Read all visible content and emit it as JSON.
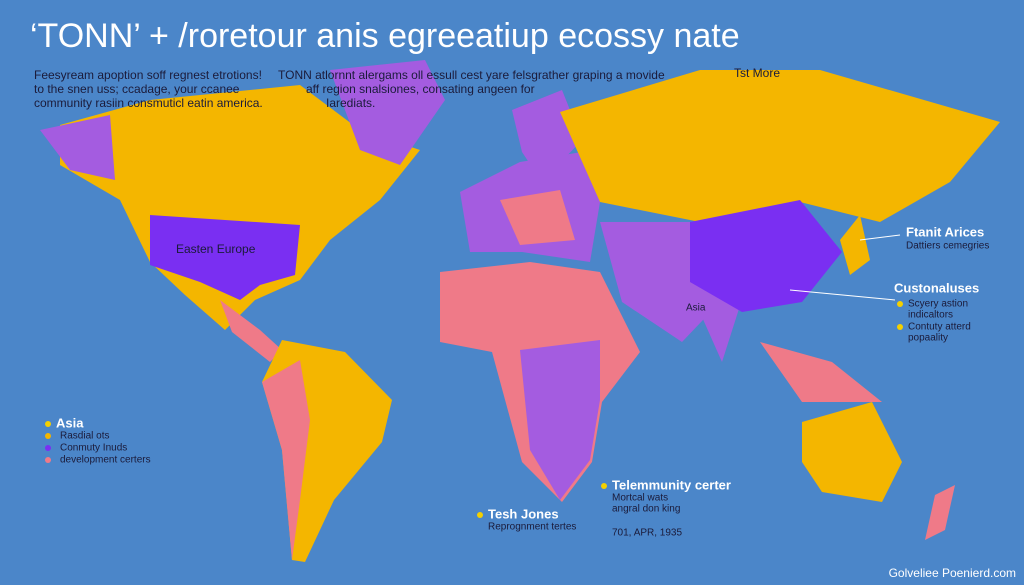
{
  "header": {
    "title": "‘TONN’ + /roretour anis egreeatiup ecossy nate"
  },
  "intro": {
    "lines": [
      "Feesyream apoption soff regnest etrotions!",
      "to the snen uss; ccadage, your ccanee",
      "community rasiin consmuticl eatin america."
    ]
  },
  "note": {
    "lines": [
      "TONN atlornnt alergams oll essull cest yare felsgrather graping a movide",
      "aff region snalsiones, consating angeen for",
      "Iarediats."
    ]
  },
  "top_link": "Tst More",
  "map_labels": {
    "region": "Easten Europe",
    "asia": "Asia"
  },
  "callouts": [
    {
      "title": "Ftanit Arices",
      "lines": [
        "Dattiers cemegries"
      ]
    },
    {
      "title": "Custonaluses",
      "lines": [
        "Scyery astion",
        "indicaltors",
        "Contuty atterd",
        "popaality"
      ]
    },
    {
      "title": "Telemmunity certer",
      "lines": [
        "Mortcal wats",
        "angral don king"
      ]
    },
    {
      "title": "Tesh Jones",
      "lines": [
        "Reprognment tertes"
      ]
    }
  ],
  "legend": {
    "title": "Asia",
    "items": [
      "Rasdial ots",
      "Conmuty Inuds",
      "development certers"
    ]
  },
  "date": "701, APR, 1935",
  "footer": "Golveliee Poenierd.com"
}
